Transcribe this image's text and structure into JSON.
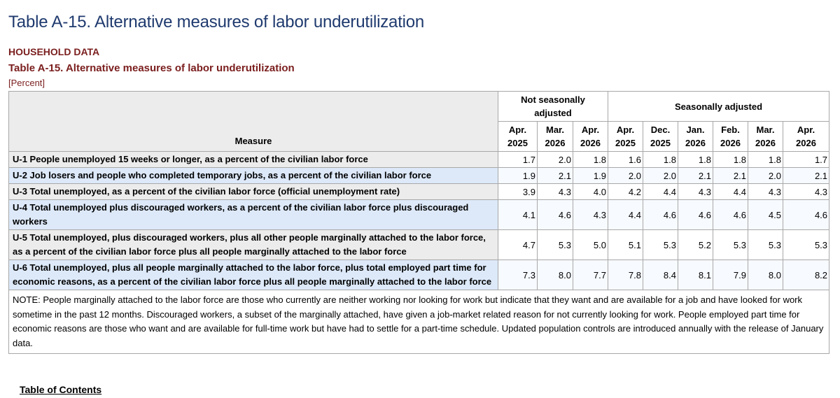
{
  "page": {
    "title": "Table A-15. Alternative measures of labor underutilization",
    "section": "HOUSEHOLD DATA",
    "table_title": "Table A-15. Alternative measures of labor underutilization",
    "unit": "[Percent]",
    "toc_link": "Table of Contents"
  },
  "table": {
    "measure_header": "Measure",
    "group_headers": {
      "nsa": "Not seasonally adjusted",
      "sa": "Seasonally adjusted"
    },
    "columns": [
      {
        "month": "Apr.",
        "year": "2025"
      },
      {
        "month": "Mar.",
        "year": "2026"
      },
      {
        "month": "Apr.",
        "year": "2026"
      },
      {
        "month": "Apr.",
        "year": "2025"
      },
      {
        "month": "Dec.",
        "year": "2025"
      },
      {
        "month": "Jan.",
        "year": "2026"
      },
      {
        "month": "Feb.",
        "year": "2026"
      },
      {
        "month": "Mar.",
        "year": "2026"
      },
      {
        "month": "Apr.",
        "year": "2026"
      }
    ],
    "rows": [
      {
        "label": "U-1 People unemployed 15 weeks or longer, as a percent of the civilian labor force",
        "values": [
          "1.7",
          "2.0",
          "1.8",
          "1.6",
          "1.8",
          "1.8",
          "1.8",
          "1.8",
          "1.7"
        ]
      },
      {
        "label": "U-2 Job losers and people who completed temporary jobs, as a percent of the civilian labor force",
        "values": [
          "1.9",
          "2.1",
          "1.9",
          "2.0",
          "2.0",
          "2.1",
          "2.1",
          "2.0",
          "2.1"
        ]
      },
      {
        "label": "U-3 Total unemployed, as a percent of the civilian labor force (official unemployment rate)",
        "values": [
          "3.9",
          "4.3",
          "4.0",
          "4.2",
          "4.4",
          "4.3",
          "4.4",
          "4.3",
          "4.3"
        ]
      },
      {
        "label": "U-4 Total unemployed plus discouraged workers, as a percent of the civilian labor force plus discouraged workers",
        "values": [
          "4.1",
          "4.6",
          "4.3",
          "4.4",
          "4.6",
          "4.6",
          "4.6",
          "4.5",
          "4.6"
        ]
      },
      {
        "label": "U-5 Total unemployed, plus discouraged workers, plus all other people marginally attached to the labor force, as a percent of the civilian labor force plus all people marginally attached to the labor force",
        "values": [
          "4.7",
          "5.3",
          "5.0",
          "5.1",
          "5.3",
          "5.2",
          "5.3",
          "5.3",
          "5.3"
        ]
      },
      {
        "label": "U-6 Total unemployed, plus all people marginally attached to the labor force, plus total employed part time for economic reasons, as a percent of the civilian labor force plus all people marginally attached to the labor force",
        "values": [
          "7.3",
          "8.0",
          "7.7",
          "7.8",
          "8.4",
          "8.1",
          "7.9",
          "8.0",
          "8.2"
        ]
      }
    ],
    "note": "NOTE: People marginally attached to the labor force are those who currently are neither working nor looking for work but indicate that they want and are available for a job and have looked for work sometime in the past 12 months. Discouraged workers, a subset of the marginally attached, have given a job-market related reason for not currently looking for work. People employed part time for economic reasons are those who want and are available for full-time work but have had to settle for a part-time schedule. Updated population controls are introduced annually with the release of January data."
  },
  "colors": {
    "title": "#1f3a6e",
    "section_heading": "#7b1e1e",
    "row_shade_gray": "#ececec",
    "row_shade_blue": "#dde9f9"
  }
}
